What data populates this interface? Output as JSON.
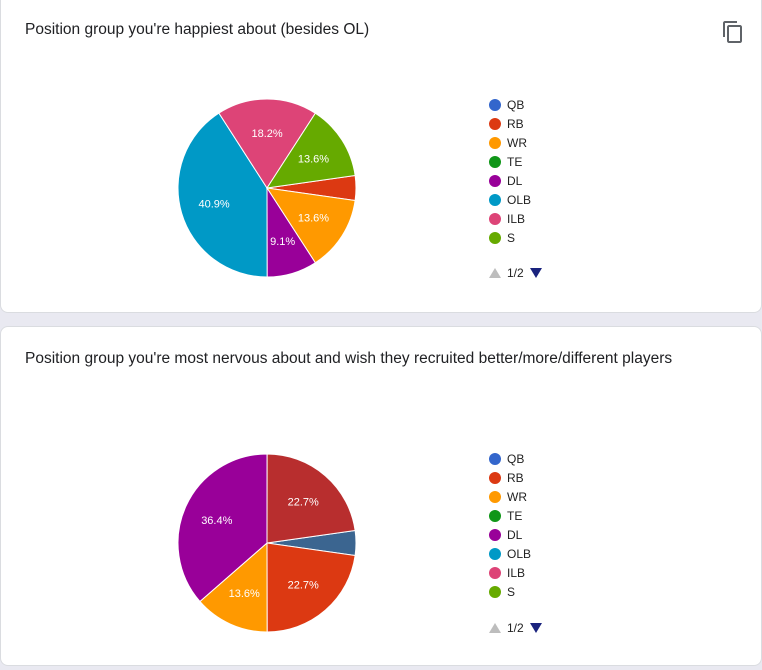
{
  "colors": {
    "QB": "#3366cc",
    "RB": "#dc3912",
    "WR": "#ff9900",
    "TE": "#109618",
    "DL": "#990099",
    "OLB": "#0099c6",
    "ILB": "#dd4477",
    "S": "#66aa00"
  },
  "questions": [
    {
      "title": "Position group you're happiest about (besides OL)",
      "pager": "1/2"
    },
    {
      "title": "Position group you're most nervous about and wish they recruited better/more/different players",
      "pager": "1/2"
    }
  ],
  "chart_data": [
    {
      "type": "pie",
      "title": "Position group you're happiest about (besides OL)",
      "legend": [
        "QB",
        "RB",
        "WR",
        "TE",
        "DL",
        "OLB",
        "ILB",
        "S"
      ],
      "slices": [
        {
          "label": "RB",
          "value": 4.5,
          "color": "#dc3912",
          "data_label": ""
        },
        {
          "label": "WR",
          "value": 13.6,
          "color": "#ff9900",
          "data_label": "13.6%"
        },
        {
          "label": "DL",
          "value": 9.1,
          "color": "#990099",
          "data_label": "9.1%"
        },
        {
          "label": "OLB",
          "value": 40.9,
          "color": "#0099c6",
          "data_label": "40.9%"
        },
        {
          "label": "ILB",
          "value": 18.2,
          "color": "#dd4477",
          "data_label": "18.2%"
        },
        {
          "label": "S",
          "value": 13.6,
          "color": "#66aa00",
          "data_label": "13.6%"
        }
      ],
      "legend_placement": "right"
    },
    {
      "type": "pie",
      "title": "Position group you're most nervous about and wish they recruited better/more/different players",
      "legend": [
        "QB",
        "RB",
        "WR",
        "TE",
        "DL",
        "OLB",
        "ILB",
        "S"
      ],
      "slices": [
        {
          "label": "",
          "value": 4.5,
          "color": "#3b6590",
          "data_label": ""
        },
        {
          "label": "RB",
          "value": 22.7,
          "color": "#dc3912",
          "data_label": "22.7%"
        },
        {
          "label": "WR",
          "value": 13.6,
          "color": "#ff9900",
          "data_label": "13.6%"
        },
        {
          "label": "DL",
          "value": 36.4,
          "color": "#990099",
          "data_label": "36.4%"
        },
        {
          "label": "",
          "value": 22.7,
          "color": "#b82e2e",
          "data_label": "22.7%"
        }
      ],
      "legend_placement": "right"
    }
  ]
}
